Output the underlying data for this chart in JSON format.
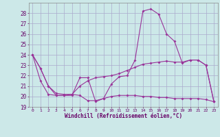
{
  "xlabel": "Windchill (Refroidissement éolien,°C)",
  "x": [
    0,
    1,
    2,
    3,
    4,
    5,
    6,
    7,
    8,
    9,
    10,
    11,
    12,
    13,
    14,
    15,
    16,
    17,
    18,
    19,
    20,
    21,
    22,
    23
  ],
  "line1": [
    24.0,
    22.7,
    21.0,
    20.1,
    20.1,
    20.1,
    21.8,
    21.8,
    19.5,
    19.8,
    21.2,
    21.9,
    22.0,
    23.5,
    28.2,
    28.4,
    27.9,
    26.0,
    25.3,
    23.2,
    23.5,
    23.5,
    23.0,
    19.5
  ],
  "line2": [
    24.0,
    22.7,
    21.0,
    20.3,
    20.2,
    20.2,
    21.0,
    21.5,
    21.8,
    21.9,
    22.0,
    22.2,
    22.5,
    22.8,
    23.1,
    23.2,
    23.3,
    23.4,
    23.3,
    23.3,
    23.5,
    23.5,
    23.0,
    19.5
  ],
  "line3": [
    24.0,
    21.5,
    20.2,
    20.1,
    20.1,
    20.2,
    20.1,
    19.6,
    19.6,
    19.8,
    20.0,
    20.1,
    20.1,
    20.1,
    20.0,
    20.0,
    19.9,
    19.9,
    19.8,
    19.8,
    19.8,
    19.8,
    19.7,
    19.5
  ],
  "line_color": "#993399",
  "bg_color": "#cce8e8",
  "grid_color": "#aaaacc",
  "ylim": [
    19,
    29
  ],
  "yticks": [
    19,
    20,
    21,
    22,
    23,
    24,
    25,
    26,
    27,
    28
  ],
  "xticks": [
    0,
    1,
    2,
    3,
    4,
    5,
    6,
    7,
    8,
    9,
    10,
    11,
    12,
    13,
    14,
    15,
    16,
    17,
    18,
    19,
    20,
    21,
    22,
    23
  ],
  "marker": "D",
  "markersize": 2.0,
  "linewidth": 0.8
}
